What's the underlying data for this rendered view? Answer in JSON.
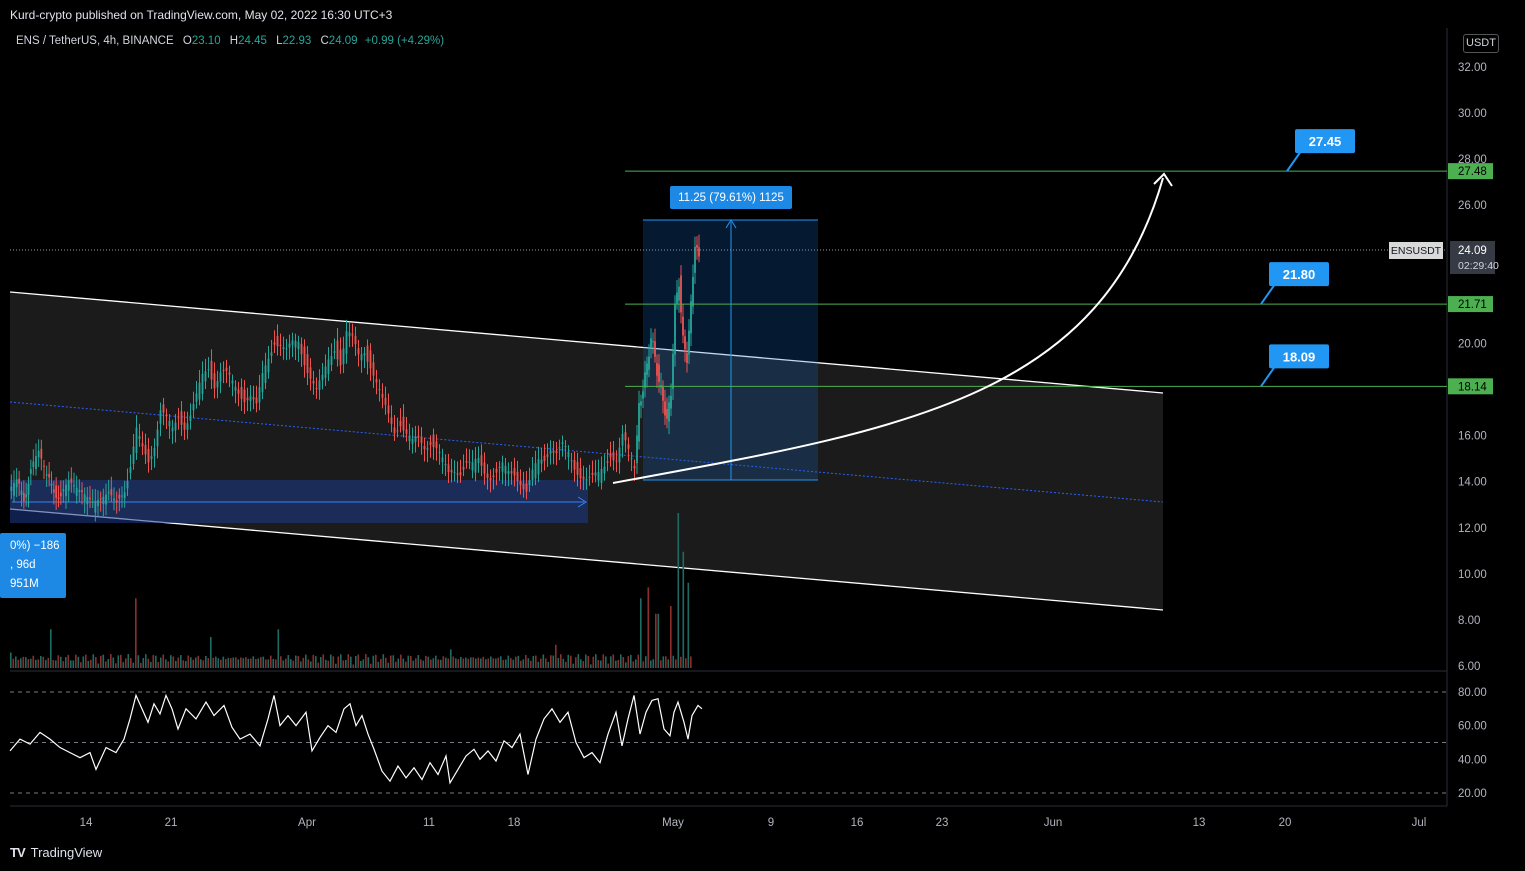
{
  "publisher_line": "Kurd-crypto published on TradingView.com, May 02, 2022 16:30 UTC+3",
  "header": {
    "symbol": "ENS / TetherUS, 4h, BINANCE",
    "open_label": "O",
    "open": "23.10",
    "high_label": "H",
    "high": "24.45",
    "low_label": "L",
    "low": "22.93",
    "close_label": "C",
    "close": "24.09",
    "change": "+0.99 (+4.29%)"
  },
  "currency_button": "USDT",
  "brand": {
    "icon": "TV",
    "name": "TradingView"
  },
  "colors": {
    "background": "#000000",
    "up": "#26a69a",
    "down": "#ef5350",
    "level_green": "#4caf50",
    "callout_blue": "#2196f3",
    "channel_white": "#ffffff"
  },
  "chart_data": {
    "type": "candlestick",
    "symbol": "ENSUSDT",
    "timeframe": "4h",
    "price_axis": {
      "ticks": [
        "32.00",
        "30.00",
        "28.00",
        "26.00",
        "20.00",
        "16.00",
        "14.00",
        "12.00",
        "10.00",
        "8.00",
        "6.00"
      ],
      "ylim": [
        6,
        33
      ]
    },
    "time_axis": {
      "ticks": [
        "14",
        "21",
        "Apr",
        "11",
        "18",
        "May",
        "9",
        "16",
        "23",
        "Jun",
        "13",
        "20",
        "Jul"
      ]
    },
    "current_price": {
      "label": "ENSUSDT",
      "value": "24.09",
      "countdown": "02:29:40"
    },
    "horizontal_levels": [
      {
        "value": 27.48,
        "label": "27.48",
        "callout": "27.45"
      },
      {
        "value": 21.71,
        "label": "21.71",
        "callout": "21.80"
      },
      {
        "value": 18.14,
        "label": "18.14",
        "callout": "18.09"
      }
    ],
    "measure_box": {
      "label": "11.25 (79.61%) 1125"
    },
    "partial_measure_label": [
      "0%) −186",
      ", 96d",
      "951M"
    ],
    "price_path": [
      [
        0,
        13.5
      ],
      [
        8,
        13.9
      ],
      [
        15,
        13.2
      ],
      [
        22,
        14.6
      ],
      [
        30,
        15.2
      ],
      [
        38,
        14.1
      ],
      [
        45,
        13.6
      ],
      [
        52,
        13.4
      ],
      [
        60,
        13.9
      ],
      [
        68,
        13.5
      ],
      [
        76,
        13.2
      ],
      [
        84,
        12.9
      ],
      [
        92,
        13.1
      ],
      [
        100,
        13.5
      ],
      [
        108,
        13.2
      ],
      [
        116,
        13.7
      ],
      [
        122,
        14.6
      ],
      [
        128,
        16.1
      ],
      [
        134,
        15.4
      ],
      [
        140,
        15.0
      ],
      [
        146,
        15.7
      ],
      [
        152,
        17.1
      ],
      [
        158,
        16.6
      ],
      [
        164,
        16.2
      ],
      [
        170,
        16.9
      ],
      [
        176,
        16.5
      ],
      [
        182,
        16.9
      ],
      [
        188,
        17.6
      ],
      [
        194,
        18.5
      ],
      [
        200,
        19.0
      ],
      [
        206,
        18.3
      ],
      [
        212,
        18.8
      ],
      [
        218,
        18.6
      ],
      [
        224,
        18.2
      ],
      [
        230,
        17.9
      ],
      [
        236,
        17.7
      ],
      [
        242,
        17.8
      ],
      [
        248,
        17.2
      ],
      [
        254,
        18.5
      ],
      [
        260,
        19.4
      ],
      [
        266,
        20.2
      ],
      [
        272,
        20.0
      ],
      [
        278,
        19.6
      ],
      [
        284,
        19.9
      ],
      [
        290,
        20.1
      ],
      [
        296,
        19.3
      ],
      [
        302,
        18.6
      ],
      [
        308,
        17.9
      ],
      [
        314,
        18.4
      ],
      [
        320,
        19.3
      ],
      [
        326,
        19.9
      ],
      [
        332,
        19.2
      ],
      [
        338,
        20.4
      ],
      [
        344,
        20.1
      ],
      [
        350,
        19.5
      ],
      [
        356,
        19.8
      ],
      [
        362,
        19.1
      ],
      [
        368,
        18.2
      ],
      [
        374,
        17.4
      ],
      [
        380,
        16.9
      ],
      [
        386,
        16.3
      ],
      [
        392,
        16.6
      ],
      [
        398,
        16.0
      ],
      [
        404,
        15.6
      ],
      [
        410,
        15.9
      ],
      [
        416,
        15.6
      ],
      [
        422,
        15.8
      ],
      [
        428,
        15.4
      ],
      [
        434,
        14.8
      ],
      [
        440,
        14.3
      ],
      [
        446,
        14.6
      ],
      [
        452,
        14.5
      ],
      [
        458,
        14.8
      ],
      [
        464,
        14.6
      ],
      [
        470,
        14.9
      ],
      [
        476,
        14.5
      ],
      [
        482,
        14.3
      ],
      [
        488,
        14.4
      ],
      [
        494,
        14.6
      ],
      [
        500,
        14.3
      ],
      [
        506,
        14.4
      ],
      [
        512,
        14.1
      ],
      [
        518,
        13.6
      ],
      [
        524,
        14.3
      ],
      [
        530,
        14.8
      ],
      [
        536,
        15.0
      ],
      [
        542,
        15.6
      ],
      [
        548,
        15.3
      ],
      [
        554,
        15.5
      ],
      [
        560,
        15.1
      ],
      [
        566,
        14.6
      ],
      [
        572,
        14.4
      ],
      [
        578,
        14.2
      ],
      [
        584,
        14.1
      ],
      [
        590,
        14.2
      ],
      [
        596,
        14.7
      ],
      [
        602,
        15.3
      ],
      [
        608,
        15.0
      ],
      [
        614,
        15.9
      ],
      [
        620,
        15.2
      ],
      [
        626,
        14.6
      ],
      [
        630,
        17.2
      ],
      [
        634,
        18.1
      ],
      [
        638,
        19.0
      ],
      [
        642,
        20.3
      ],
      [
        646,
        19.4
      ],
      [
        650,
        18.3
      ],
      [
        654,
        17.6
      ],
      [
        658,
        16.6
      ],
      [
        662,
        17.9
      ],
      [
        666,
        21.5
      ],
      [
        670,
        22.7
      ],
      [
        674,
        20.1
      ],
      [
        678,
        19.4
      ],
      [
        682,
        21.6
      ],
      [
        686,
        24.4
      ],
      [
        690,
        23.6
      ]
    ],
    "volume_spikes": [
      [
        0,
        0.1
      ],
      [
        40,
        0.25
      ],
      [
        125,
        0.45
      ],
      [
        200,
        0.2
      ],
      [
        268,
        0.25
      ],
      [
        440,
        0.12
      ],
      [
        545,
        0.15
      ],
      [
        630,
        0.45
      ],
      [
        638,
        0.52
      ],
      [
        646,
        0.35
      ],
      [
        660,
        0.4
      ],
      [
        668,
        1.0
      ],
      [
        672,
        0.75
      ],
      [
        678,
        0.55
      ],
      [
        684,
        0.6
      ],
      [
        688,
        0.55
      ]
    ],
    "rsi_panel": {
      "ticks": [
        "80.00",
        "60.00",
        "40.00",
        "20.00"
      ],
      "levels": [
        80,
        50,
        20
      ],
      "values": [
        [
          0,
          45
        ],
        [
          10,
          52
        ],
        [
          20,
          49
        ],
        [
          30,
          56
        ],
        [
          40,
          52
        ],
        [
          50,
          47
        ],
        [
          60,
          44
        ],
        [
          70,
          41
        ],
        [
          80,
          44
        ],
        [
          86,
          34
        ],
        [
          96,
          47
        ],
        [
          106,
          44
        ],
        [
          114,
          52
        ],
        [
          120,
          64
        ],
        [
          126,
          78
        ],
        [
          132,
          70
        ],
        [
          138,
          62
        ],
        [
          144,
          73
        ],
        [
          150,
          67
        ],
        [
          156,
          78
        ],
        [
          162,
          70
        ],
        [
          168,
          58
        ],
        [
          176,
          70
        ],
        [
          186,
          64
        ],
        [
          196,
          74
        ],
        [
          204,
          66
        ],
        [
          214,
          72
        ],
        [
          222,
          59
        ],
        [
          230,
          52
        ],
        [
          240,
          55
        ],
        [
          250,
          48
        ],
        [
          258,
          64
        ],
        [
          264,
          78
        ],
        [
          270,
          60
        ],
        [
          278,
          66
        ],
        [
          286,
          60
        ],
        [
          296,
          68
        ],
        [
          302,
          45
        ],
        [
          310,
          53
        ],
        [
          318,
          60
        ],
        [
          326,
          56
        ],
        [
          334,
          70
        ],
        [
          340,
          73
        ],
        [
          346,
          60
        ],
        [
          352,
          66
        ],
        [
          358,
          55
        ],
        [
          364,
          46
        ],
        [
          372,
          33
        ],
        [
          380,
          27
        ],
        [
          388,
          36
        ],
        [
          396,
          29
        ],
        [
          404,
          35
        ],
        [
          412,
          28
        ],
        [
          420,
          38
        ],
        [
          428,
          31
        ],
        [
          436,
          42
        ],
        [
          440,
          26
        ],
        [
          448,
          34
        ],
        [
          456,
          42
        ],
        [
          464,
          46
        ],
        [
          470,
          40
        ],
        [
          478,
          45
        ],
        [
          486,
          39
        ],
        [
          494,
          51
        ],
        [
          502,
          47
        ],
        [
          510,
          55
        ],
        [
          518,
          31
        ],
        [
          526,
          52
        ],
        [
          534,
          64
        ],
        [
          542,
          70
        ],
        [
          550,
          62
        ],
        [
          558,
          68
        ],
        [
          566,
          50
        ],
        [
          574,
          41
        ],
        [
          582,
          44
        ],
        [
          590,
          38
        ],
        [
          598,
          55
        ],
        [
          606,
          68
        ],
        [
          612,
          48
        ],
        [
          618,
          64
        ],
        [
          624,
          78
        ],
        [
          630,
          55
        ],
        [
          636,
          68
        ],
        [
          642,
          75
        ],
        [
          648,
          76
        ],
        [
          654,
          58
        ],
        [
          660,
          54
        ],
        [
          664,
          68
        ],
        [
          668,
          74
        ],
        [
          674,
          62
        ],
        [
          678,
          52
        ],
        [
          682,
          66
        ],
        [
          688,
          72
        ],
        [
          692,
          70
        ]
      ]
    }
  }
}
